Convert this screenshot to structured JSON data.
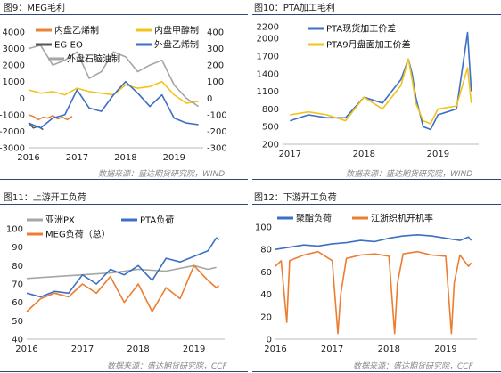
{
  "panels": [
    {
      "title": "图9：MEG毛利",
      "source": "数据来源：盛达期货研究院，WIND",
      "chart_data": {
        "type": "line",
        "xlabel": "",
        "ylabel": "",
        "x_ticks": [
          "2016",
          "2017",
          "2018",
          "2019"
        ],
        "ylim": [
          -3000,
          4000
        ],
        "y_ticks": [
          -3000,
          -2000,
          -1000,
          0,
          1000,
          2000,
          3000,
          4000
        ],
        "y2lim": [
          -300,
          400
        ],
        "y2_ticks": [
          -300,
          -200,
          -100,
          0,
          100,
          200,
          300,
          400
        ],
        "legend_position": "top",
        "series": [
          {
            "name": "内盘乙烯制",
            "axis": "left",
            "color": "#e8833a",
            "x": [
              2016.0,
              2016.1,
              2016.2,
              2016.3,
              2016.4,
              2016.5,
              2016.6,
              2016.7,
              2016.8,
              2016.9
            ],
            "values": [
              -1000,
              -1100,
              -1300,
              -1150,
              -1200,
              -1050,
              -1250,
              -1150,
              -1300,
              -1100
            ]
          },
          {
            "name": "内盘甲醇制",
            "axis": "left",
            "color": "#f2c318",
            "x": [
              2016.0,
              2016.25,
              2016.5,
              2016.75,
              2017.0,
              2017.25,
              2017.5,
              2017.75,
              2018.0,
              2018.25,
              2018.5,
              2018.75,
              2019.0,
              2019.25,
              2019.5
            ],
            "values": [
              500,
              300,
              400,
              200,
              600,
              400,
              300,
              200,
              800,
              600,
              700,
              1000,
              200,
              -300,
              -200
            ]
          },
          {
            "name": "EG-EO",
            "axis": "left",
            "color": "#555555",
            "x": [
              2016.0,
              2016.1,
              2016.2,
              2016.3
            ],
            "values": [
              -1500,
              -1800,
              -1700,
              -1900
            ]
          },
          {
            "name": "外盘乙烯制",
            "axis": "right",
            "color": "#3d6fc4",
            "x": [
              2016.0,
              2016.25,
              2016.5,
              2016.75,
              2017.0,
              2017.25,
              2017.5,
              2017.75,
              2018.0,
              2018.25,
              2018.5,
              2018.75,
              2019.0,
              2019.25,
              2019.5
            ],
            "values": [
              -150,
              -180,
              -120,
              -100,
              50,
              -60,
              -80,
              20,
              100,
              30,
              -50,
              20,
              -120,
              -150,
              -160
            ]
          },
          {
            "name": "外盘石脑油制",
            "axis": "right",
            "color": "#a6a6a6",
            "x": [
              2016.0,
              2016.25,
              2016.5,
              2016.75,
              2017.0,
              2017.25,
              2017.5,
              2017.75,
              2018.0,
              2018.25,
              2018.5,
              2018.75,
              2019.0,
              2019.25,
              2019.5
            ],
            "values": [
              300,
              320,
              200,
              230,
              280,
              120,
              160,
              280,
              250,
              160,
              200,
              230,
              80,
              0,
              -50
            ]
          }
        ]
      }
    },
    {
      "title": "图10：PTA加工毛利",
      "source": "数据来源：盛达期货研究院，WIND",
      "chart_data": {
        "type": "line",
        "xlabel": "",
        "ylabel": "",
        "x_ticks": [
          "2017",
          "2018",
          "2019"
        ],
        "ylim": [
          200,
          2200
        ],
        "y_ticks": [
          200,
          500,
          800,
          1100,
          1400,
          1700,
          2000,
          2200
        ],
        "legend_position": "top",
        "series": [
          {
            "name": "PTA现货加工价差",
            "color": "#3d6fc4",
            "x": [
              2017.0,
              2017.25,
              2017.5,
              2017.75,
              2018.0,
              2018.25,
              2018.5,
              2018.6,
              2018.65,
              2018.7,
              2018.8,
              2018.9,
              2019.0,
              2019.25,
              2019.4,
              2019.45
            ],
            "values": [
              600,
              700,
              650,
              650,
              1000,
              900,
              1300,
              1650,
              1400,
              1000,
              500,
              450,
              700,
              800,
              2100,
              1100
            ]
          },
          {
            "name": "PTA9月盘面加工价差",
            "color": "#f2c318",
            "x": [
              2017.0,
              2017.25,
              2017.5,
              2017.75,
              2018.0,
              2018.25,
              2018.5,
              2018.6,
              2018.65,
              2018.7,
              2018.8,
              2018.9,
              2019.0,
              2019.25,
              2019.4,
              2019.45
            ],
            "values": [
              700,
              750,
              700,
              600,
              1000,
              800,
              1200,
              1650,
              1300,
              900,
              600,
              550,
              800,
              850,
              1500,
              900
            ]
          }
        ]
      }
    },
    {
      "title": "图11：上游开工负荷",
      "source": "数据来源：盛达期货研究院，CCF",
      "chart_data": {
        "type": "line",
        "xlabel": "",
        "ylabel": "",
        "x_ticks": [
          "2016",
          "2017",
          "2018",
          "2019"
        ],
        "ylim": [
          40,
          100
        ],
        "y_ticks": [
          40,
          50,
          60,
          70,
          80,
          90,
          100
        ],
        "legend_position": "top",
        "series": [
          {
            "name": "亚洲PX",
            "color": "#a6a6a6",
            "x": [
              2016.0,
              2016.5,
              2017.0,
              2017.5,
              2018.0,
              2018.5,
              2019.0,
              2019.25,
              2019.4
            ],
            "values": [
              73,
              74,
              75,
              76,
              78,
              77,
              80,
              78,
              79
            ]
          },
          {
            "name": "PTA负荷",
            "color": "#3d6fc4",
            "x": [
              2016.0,
              2016.25,
              2016.5,
              2016.75,
              2017.0,
              2017.25,
              2017.5,
              2017.75,
              2018.0,
              2018.25,
              2018.5,
              2018.75,
              2019.0,
              2019.25,
              2019.4,
              2019.45
            ],
            "values": [
              65,
              63,
              66,
              65,
              75,
              70,
              78,
              75,
              80,
              72,
              84,
              82,
              85,
              88,
              95,
              94
            ]
          },
          {
            "name": "MEG负荷（总）",
            "color": "#ed7d31",
            "x": [
              2016.0,
              2016.25,
              2016.5,
              2016.75,
              2017.0,
              2017.25,
              2017.5,
              2017.75,
              2018.0,
              2018.25,
              2018.5,
              2018.75,
              2019.0,
              2019.25,
              2019.4,
              2019.45
            ],
            "values": [
              55,
              62,
              65,
              63,
              70,
              65,
              74,
              60,
              70,
              55,
              68,
              62,
              80,
              72,
              68,
              69
            ]
          }
        ]
      }
    },
    {
      "title": "图12：下游开工负荷",
      "source": "数据来源：盛达期货研究院，CCF",
      "chart_data": {
        "type": "line",
        "xlabel": "",
        "ylabel": "",
        "x_ticks": [
          "2016",
          "2017",
          "2018",
          "2019"
        ],
        "ylim": [
          0,
          100
        ],
        "y_ticks": [
          0,
          20,
          40,
          60,
          80,
          100
        ],
        "legend_position": "top",
        "series": [
          {
            "name": "聚酯负荷",
            "color": "#3d6fc4",
            "x": [
              2016.0,
              2016.25,
              2016.5,
              2016.75,
              2017.0,
              2017.25,
              2017.5,
              2017.75,
              2018.0,
              2018.25,
              2018.5,
              2018.75,
              2019.0,
              2019.25,
              2019.4,
              2019.45
            ],
            "values": [
              80,
              82,
              84,
              83,
              85,
              86,
              88,
              87,
              90,
              92,
              93,
              92,
              90,
              88,
              91,
              88
            ]
          },
          {
            "name": "江浙织机开机率",
            "color": "#ed7d31",
            "x": [
              2016.0,
              2016.1,
              2016.2,
              2016.25,
              2016.5,
              2016.75,
              2017.0,
              2017.1,
              2017.15,
              2017.25,
              2017.5,
              2017.75,
              2018.0,
              2018.1,
              2018.15,
              2018.25,
              2018.5,
              2018.75,
              2019.0,
              2019.1,
              2019.15,
              2019.25,
              2019.4,
              2019.45
            ],
            "values": [
              65,
              70,
              15,
              70,
              75,
              78,
              70,
              5,
              40,
              72,
              75,
              76,
              74,
              5,
              50,
              76,
              78,
              75,
              74,
              5,
              50,
              75,
              65,
              68
            ]
          }
        ]
      }
    }
  ]
}
